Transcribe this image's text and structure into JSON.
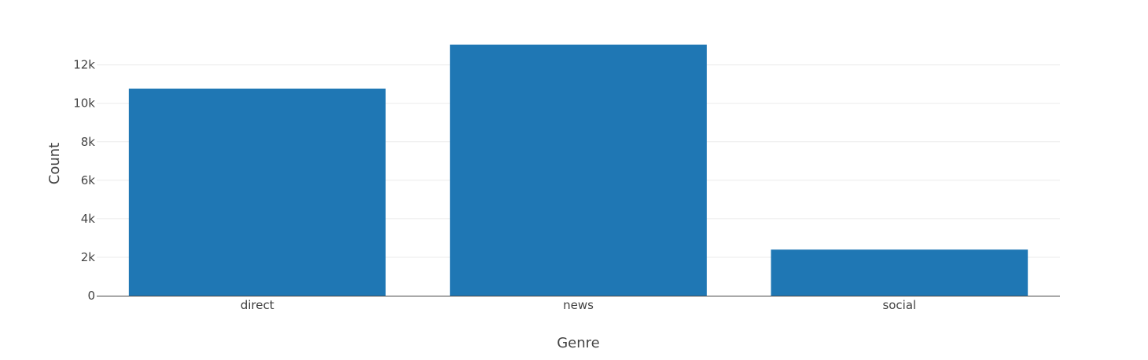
{
  "chart_data": {
    "type": "bar",
    "title": "",
    "xlabel": "Genre",
    "ylabel": "Count",
    "categories": [
      "direct",
      "news",
      "social"
    ],
    "values": [
      10766,
      13054,
      2396
    ],
    "ylim": [
      0,
      13741
    ],
    "yticks": [
      0,
      2000,
      4000,
      6000,
      8000,
      10000,
      12000
    ],
    "ytick_labels": [
      "0",
      "2k",
      "4k",
      "6k",
      "8k",
      "10k",
      "12k"
    ],
    "grid": true,
    "legend": "none",
    "bar_color": "#1f77b4"
  }
}
